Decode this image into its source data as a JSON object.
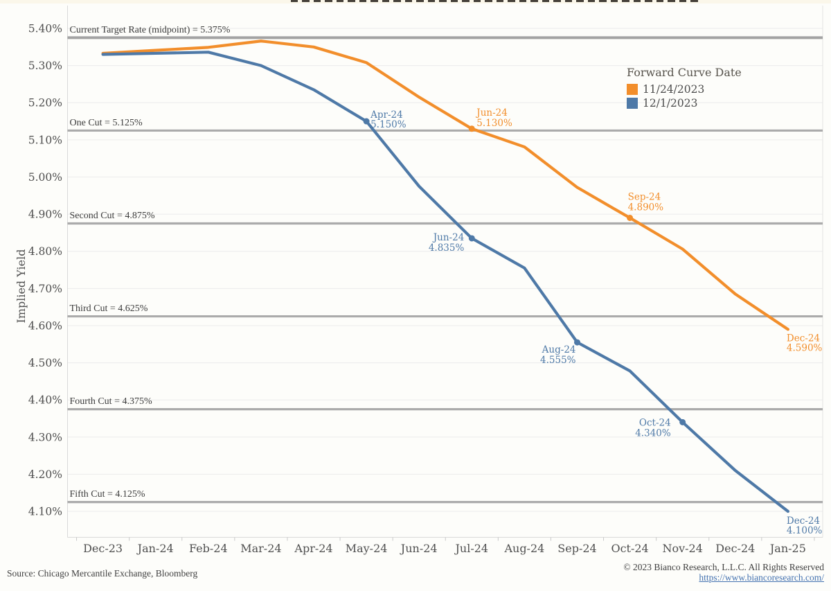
{
  "legend": {
    "title": "Forward Curve Date",
    "items": [
      {
        "label": "11/24/2023",
        "color": "#f28e2b"
      },
      {
        "label": "12/1/2023",
        "color": "#4e79a7"
      }
    ]
  },
  "footer": {
    "source": "Source: Chicago Mercantile Exchange, Bloomberg",
    "copyright": "© 2023 Bianco Research, L.L.C. All Rights Reserved",
    "link": "https://www.biancoresearch.com/"
  },
  "colors": {
    "orange_series": "#f28e2b",
    "blue_series": "#4e79a7",
    "reference_line": "#ababab",
    "gridline": "#ececec",
    "axis_text": "#4f4f4f"
  },
  "chart_data": {
    "type": "line",
    "ylabel": "Implied Yield",
    "grid": true,
    "legend_position": "upper-right",
    "ylim": [
      4.03,
      5.46
    ],
    "categories": [
      "Dec-23",
      "Jan-24",
      "Feb-24",
      "Mar-24",
      "Apr-24",
      "May-24",
      "Jun-24",
      "Jul-24",
      "Aug-24",
      "Sep-24",
      "Oct-24",
      "Nov-24",
      "Dec-24",
      "Jan-25"
    ],
    "y_ticks": [
      {
        "value": 5.4,
        "label": "5.40%"
      },
      {
        "value": 5.3,
        "label": "5.30%"
      },
      {
        "value": 5.2,
        "label": "5.20%"
      },
      {
        "value": 5.1,
        "label": "5.10%"
      },
      {
        "value": 5.0,
        "label": "5.00%"
      },
      {
        "value": 4.9,
        "label": "4.90%"
      },
      {
        "value": 4.8,
        "label": "4.80%"
      },
      {
        "value": 4.7,
        "label": "4.70%"
      },
      {
        "value": 4.6,
        "label": "4.60%"
      },
      {
        "value": 4.5,
        "label": "4.50%"
      },
      {
        "value": 4.4,
        "label": "4.40%"
      },
      {
        "value": 4.3,
        "label": "4.30%"
      },
      {
        "value": 4.2,
        "label": "4.20%"
      },
      {
        "value": 4.1,
        "label": "4.10%"
      }
    ],
    "series": [
      {
        "name": "11/24/2023",
        "color": "#f28e2b",
        "values": [
          5.333,
          5.341,
          5.349,
          5.366,
          5.35,
          5.308,
          5.215,
          5.13,
          5.081,
          4.972,
          4.89,
          4.806,
          4.685,
          4.59
        ]
      },
      {
        "name": "12/1/2023",
        "color": "#4e79a7",
        "values": [
          5.33,
          5.333,
          5.336,
          5.3,
          5.235,
          5.15,
          4.975,
          4.835,
          4.755,
          4.555,
          4.478,
          4.34,
          4.21,
          4.1
        ]
      }
    ],
    "reference_lines": [
      {
        "label": "Current Target Rate (midpoint) = 5.375%",
        "value": 5.375
      },
      {
        "label": "One Cut = 5.125%",
        "value": 5.125
      },
      {
        "label": "Second Cut = 4.875%",
        "value": 4.875
      },
      {
        "label": "Third Cut = 4.625%",
        "value": 4.625
      },
      {
        "label": "Fourth Cut = 4.375%",
        "value": 4.375
      },
      {
        "label": "Fifth Cut = 4.125%",
        "value": 4.125
      }
    ],
    "annotations": [
      {
        "series": "11/24/2023",
        "x_index": 7,
        "value": 5.13,
        "label": "Jun-24",
        "value_label": "5.130%",
        "marker": true,
        "anchor": "start",
        "dx": 7,
        "dy1": -19,
        "dy2": -4
      },
      {
        "series": "11/24/2023",
        "x_index": 10,
        "value": 4.89,
        "label": "Sep-24",
        "value_label": "4.890%",
        "marker": true,
        "anchor": "start",
        "dx": -3,
        "dy1": -26,
        "dy2": -11
      },
      {
        "series": "11/24/2023",
        "x_index": 13,
        "value": 4.59,
        "label": "Dec-24",
        "value_label": "4.590%",
        "marker": false,
        "anchor": "start",
        "dx": -2,
        "dy1": 17,
        "dy2": 31
      },
      {
        "series": "12/1/2023",
        "x_index": 5,
        "value": 5.15,
        "label": "Apr-24",
        "value_label": "5.150%",
        "marker": true,
        "anchor": "start",
        "dx": 6,
        "dy1": -5,
        "dy2": 9
      },
      {
        "series": "12/1/2023",
        "x_index": 7,
        "value": 4.835,
        "label": "Jun-24",
        "value_label": "4.835%",
        "marker": true,
        "anchor": "end",
        "dx": -11,
        "dy1": 3,
        "dy2": 18
      },
      {
        "series": "12/1/2023",
        "x_index": 9,
        "value": 4.555,
        "label": "Aug-24",
        "value_label": "4.555%",
        "marker": true,
        "anchor": "end",
        "dx": -2,
        "dy1": 15,
        "dy2": 30
      },
      {
        "series": "12/1/2023",
        "x_index": 11,
        "value": 4.34,
        "label": "Oct-24",
        "value_label": "4.340%",
        "marker": true,
        "anchor": "end",
        "dx": -17,
        "dy1": 5,
        "dy2": 20
      },
      {
        "series": "12/1/2023",
        "x_index": 13,
        "value": 4.1,
        "label": "Dec-24",
        "value_label": "4.100%",
        "marker": false,
        "anchor": "start",
        "dx": -2,
        "dy1": 18,
        "dy2": 32
      }
    ]
  }
}
